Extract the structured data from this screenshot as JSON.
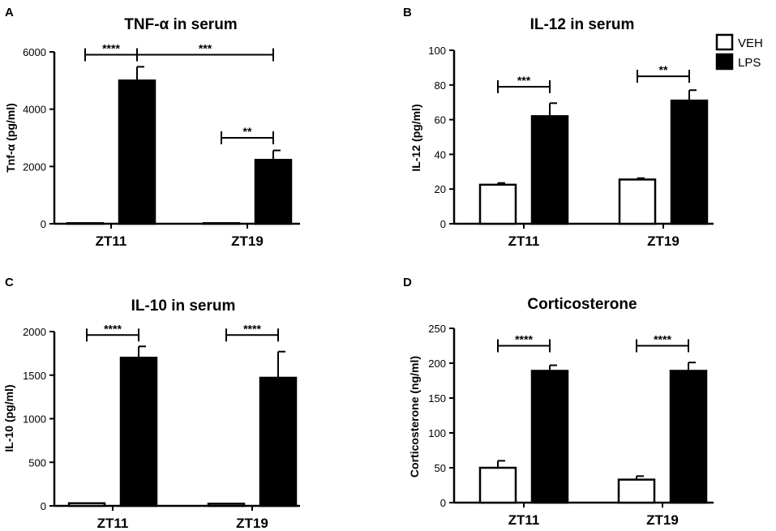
{
  "legend": [
    {
      "label": "VEH",
      "fill": "#ffffff"
    },
    {
      "label": "LPS",
      "fill": "#000000"
    }
  ],
  "chart_data": [
    {
      "panel": "A",
      "type": "bar",
      "title": "TNF-α in serum",
      "ylabel": "Tnf-α (pg/ml)",
      "ylim": [
        0,
        6000
      ],
      "yticks": [
        0,
        2000,
        4000,
        6000
      ],
      "categories": [
        "ZT11",
        "ZT19"
      ],
      "series": [
        {
          "name": "VEH",
          "values": [
            20,
            20
          ],
          "errors": [
            0,
            0
          ]
        },
        {
          "name": "LPS",
          "values": [
            5000,
            2230
          ],
          "errors": [
            480,
            330
          ]
        }
      ],
      "significance": [
        {
          "label": "****",
          "from": [
            0,
            "VEH"
          ],
          "to": [
            0,
            "LPS"
          ],
          "y": 5900
        },
        {
          "label": "***",
          "from": [
            0,
            "LPS"
          ],
          "to": [
            1,
            "LPS"
          ],
          "y": 5900
        },
        {
          "label": "**",
          "from": [
            1,
            "VEH"
          ],
          "to": [
            1,
            "LPS"
          ],
          "y": 3000
        }
      ]
    },
    {
      "panel": "B",
      "type": "bar",
      "title": "IL-12 in serum",
      "ylabel": "IL-12 (pg/ml)",
      "ylim": [
        0,
        100
      ],
      "yticks": [
        0,
        20,
        40,
        60,
        80,
        100
      ],
      "categories": [
        "ZT11",
        "ZT19"
      ],
      "series": [
        {
          "name": "VEH",
          "values": [
            22.5,
            25.5
          ],
          "errors": [
            1,
            0.8
          ]
        },
        {
          "name": "LPS",
          "values": [
            62,
            71
          ],
          "errors": [
            7.5,
            6
          ]
        }
      ],
      "significance": [
        {
          "label": "***",
          "from": [
            0,
            "VEH"
          ],
          "to": [
            0,
            "LPS"
          ],
          "y": 79
        },
        {
          "label": "**",
          "from": [
            1,
            "VEH"
          ],
          "to": [
            1,
            "LPS"
          ],
          "y": 85
        }
      ]
    },
    {
      "panel": "C",
      "type": "bar",
      "title": "IL-10 in serum",
      "ylabel": "IL-10 (pg/ml)",
      "ylim": [
        0,
        2000
      ],
      "yticks": [
        0,
        500,
        1000,
        1500,
        2000
      ],
      "categories": [
        "ZT11",
        "ZT19"
      ],
      "series": [
        {
          "name": "VEH",
          "values": [
            30,
            25
          ],
          "errors": [
            0,
            0
          ]
        },
        {
          "name": "LPS",
          "values": [
            1700,
            1470
          ],
          "errors": [
            130,
            300
          ]
        }
      ],
      "significance": [
        {
          "label": "****",
          "from": [
            0,
            "VEH"
          ],
          "to": [
            0,
            "LPS"
          ],
          "y": 1960
        },
        {
          "label": "****",
          "from": [
            1,
            "VEH"
          ],
          "to": [
            1,
            "LPS"
          ],
          "y": 1960
        }
      ]
    },
    {
      "panel": "D",
      "type": "bar",
      "title": "Corticosterone",
      "ylabel": "Corticosterone (ng/ml)",
      "ylim": [
        0,
        250
      ],
      "yticks": [
        0,
        50,
        100,
        150,
        200,
        250
      ],
      "categories": [
        "ZT11",
        "ZT19"
      ],
      "series": [
        {
          "name": "VEH",
          "values": [
            50,
            33
          ],
          "errors": [
            10,
            5
          ]
        },
        {
          "name": "LPS",
          "values": [
            189,
            189
          ],
          "errors": [
            8,
            12
          ]
        }
      ],
      "significance": [
        {
          "label": "****",
          "from": [
            0,
            "VEH"
          ],
          "to": [
            0,
            "LPS"
          ],
          "y": 225
        },
        {
          "label": "****",
          "from": [
            1,
            "VEH"
          ],
          "to": [
            1,
            "LPS"
          ],
          "y": 225
        }
      ]
    }
  ]
}
